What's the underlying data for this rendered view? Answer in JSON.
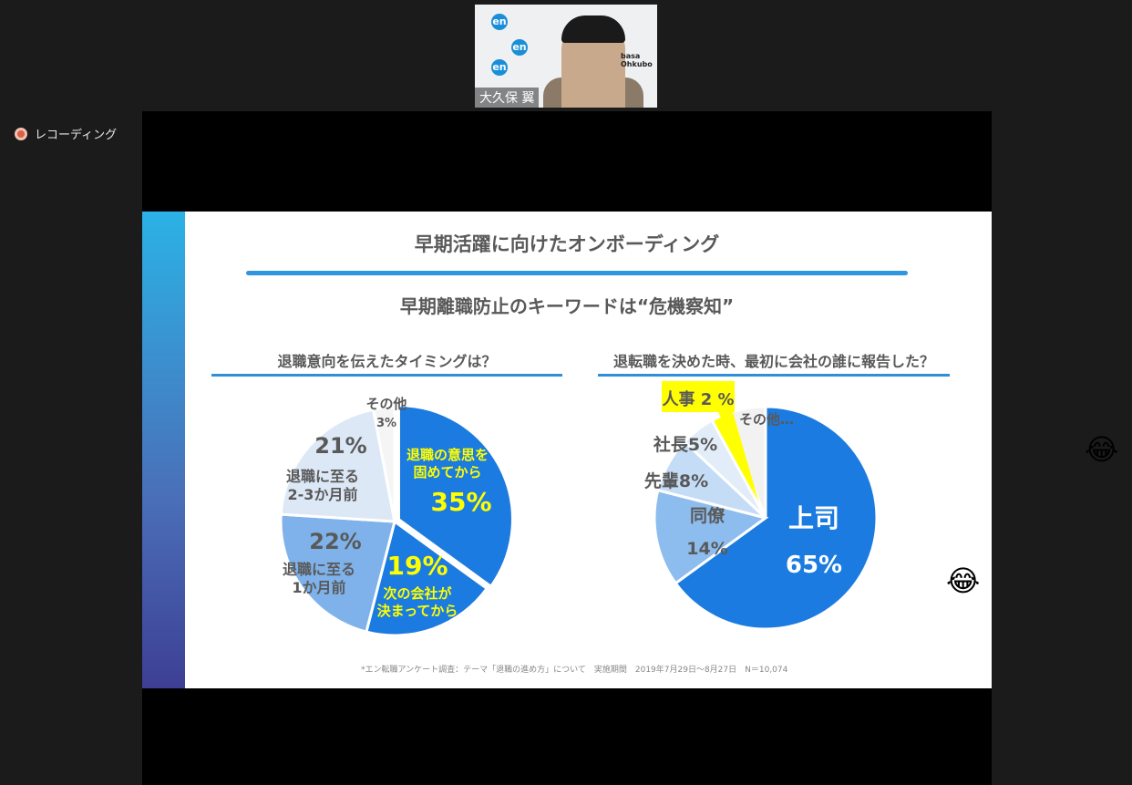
{
  "window": {
    "recording_label": "レコーディング",
    "recording_icon": "record-dot-icon"
  },
  "video": {
    "participant_name": "大久保 翼",
    "background_text": "basa Ohkubo",
    "logo_text": "en"
  },
  "slide": {
    "title": "早期活躍に向けたオンボーディング",
    "subtitle": "早期離職防止のキーワードは“危機察知”",
    "left_heading": "退職意向を伝えたタイミングは？",
    "right_heading": "退転職を決めた時、最初に会社の誰に報告した？",
    "footnote": "*エン転職アンケート調査：テーマ「退職の進め方」について　実施期間　2019年7月29日～8月27日　N＝10,074"
  },
  "chart_data": [
    {
      "type": "pie",
      "title": "退職意向を伝えたタイミングは？",
      "order": "clockwise-from-top",
      "slices": [
        {
          "label": "退職の意思を固めてから",
          "value": 35,
          "value_label": "35%",
          "color": "#1b7be0"
        },
        {
          "label": "次の会社が決まってから",
          "value": 19,
          "value_label": "19%",
          "color": "#1b7be0"
        },
        {
          "label": "退職に至る1か月前",
          "value": 22,
          "value_label": "22%",
          "color": "#7fb2ea"
        },
        {
          "label": "退職に至る2-3か月前",
          "value": 21,
          "value_label": "21%",
          "color": "#dde8f6"
        },
        {
          "label": "その他",
          "value": 3,
          "value_label": "3%",
          "color": "#f5f5f5"
        }
      ]
    },
    {
      "type": "pie",
      "title": "退転職を決めた時、最初に会社の誰に報告した？",
      "order": "clockwise-from-top",
      "slices": [
        {
          "label": "上司",
          "value": 65,
          "value_label": "65%",
          "color": "#1b7be0"
        },
        {
          "label": "同僚",
          "value": 14,
          "value_label": "14%",
          "color": "#8dbcee"
        },
        {
          "label": "先輩",
          "value": 8,
          "value_label": "8%",
          "color": "#c4dcf6"
        },
        {
          "label": "社長",
          "value": 5,
          "value_label": "5%",
          "color": "#e2edf9"
        },
        {
          "label": "人事",
          "value": 2,
          "value_label": "2 %",
          "color": "#ffff00"
        },
        {
          "label": "その他…",
          "value": 6,
          "value_label": "",
          "color": "#f2f2f2"
        }
      ]
    }
  ],
  "reactions": [
    {
      "icon": "tears-of-joy-emoji",
      "glyph": "😂"
    },
    {
      "icon": "tears-of-joy-emoji",
      "glyph": "😂"
    }
  ]
}
